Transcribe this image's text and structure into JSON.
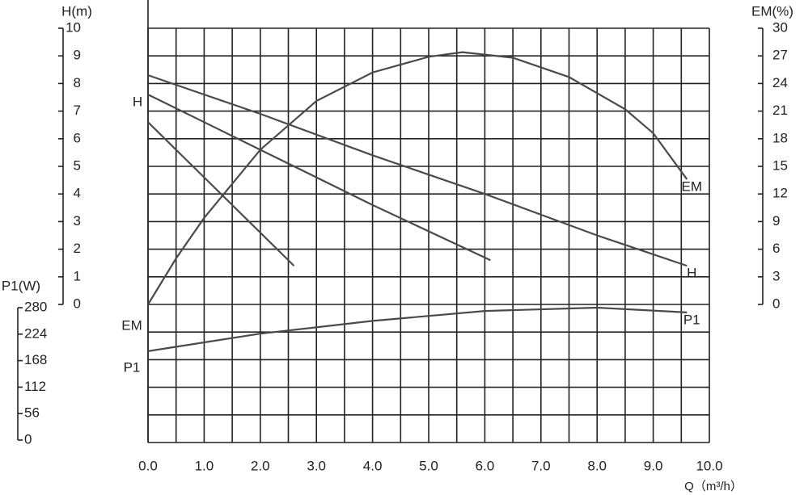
{
  "chart_data": {
    "type": "line",
    "x_label": "Q（m³/h）",
    "y_label": "H(m)",
    "y2_label": "EM(%)",
    "y3_label": "P1(W)",
    "annotations": [
      "H",
      "EM",
      "P1"
    ],
    "xlim": [
      0,
      10
    ],
    "xticks": [
      {
        "value": 0,
        "label": "0.0"
      },
      {
        "value": 1,
        "label": "1.0"
      },
      {
        "value": 2,
        "label": "2.0"
      },
      {
        "value": 3,
        "label": "3.0"
      },
      {
        "value": 4,
        "label": "4.0"
      },
      {
        "value": 5,
        "label": "5.0"
      },
      {
        "value": 6,
        "label": "6.0"
      },
      {
        "value": 7,
        "label": "7.0"
      },
      {
        "value": 8,
        "label": "8.0"
      },
      {
        "value": 9,
        "label": "9.0"
      },
      {
        "value": 10,
        "label": "10.0"
      }
    ],
    "x_minor_ticks": [
      0.5,
      1.5,
      2.5,
      3.5,
      4.5,
      5.5,
      6.5,
      7.5,
      8.5,
      9.5
    ],
    "ylim": [
      -5,
      10
    ],
    "yticks": [
      0,
      1,
      2,
      3,
      4,
      5,
      6,
      7,
      8,
      9,
      10
    ],
    "y_minor_ticks": [
      -5,
      -4,
      -3,
      -2,
      -1
    ],
    "y2lim": [
      0,
      30
    ],
    "y2ticks": [
      0,
      3,
      6,
      9,
      12,
      15,
      18,
      21,
      24,
      27,
      30
    ],
    "y3lim": [
      0,
      280
    ],
    "y3ticks": [
      0,
      56,
      112,
      168,
      224,
      280
    ],
    "grid": true,
    "color": "#4a4a4a",
    "series": [
      {
        "name": "H",
        "x": [
          0,
          2,
          4,
          6,
          8,
          9.6
        ],
        "values": [
          8.3,
          6.9,
          5.4,
          4.0,
          2.5,
          1.4
        ]
      },
      {
        "x": [
          0,
          2,
          4,
          6.1
        ],
        "values": [
          7.6,
          5.6,
          3.6,
          1.6
        ]
      },
      {
        "x": [
          0,
          1.3,
          2.6
        ],
        "values": [
          6.6,
          4.0,
          1.4
        ]
      },
      {
        "name": "EM",
        "axis": "y2",
        "x": [
          0,
          0.5,
          1,
          2,
          3,
          4,
          5,
          5.6,
          6.5,
          7.5,
          8.5,
          9,
          9.6
        ],
        "values": [
          0,
          5,
          9.4,
          16.8,
          22.1,
          25.2,
          26.9,
          27.4,
          26.8,
          24.7,
          21.2,
          18.6,
          13.6
        ]
      },
      {
        "name": "P1",
        "axis": "y3",
        "x": [
          0,
          2,
          4,
          6,
          8,
          9.6
        ],
        "values": [
          188,
          225,
          252,
          273,
          280,
          270
        ]
      }
    ]
  }
}
